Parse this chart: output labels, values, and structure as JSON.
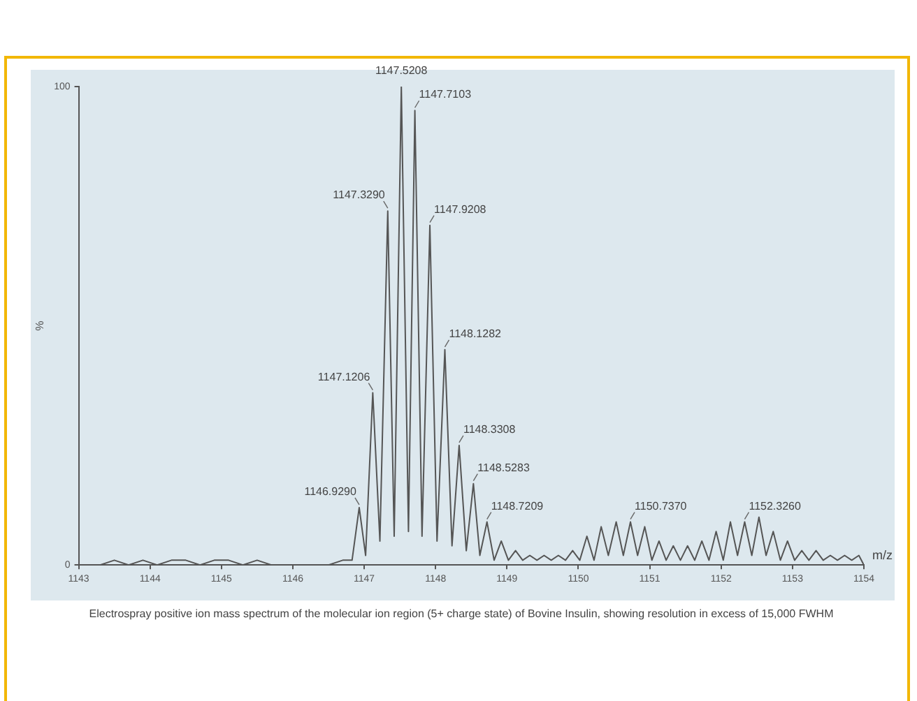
{
  "chart_data": {
    "type": "line",
    "xlabel": "m/z",
    "ylabel": "%",
    "marker": "none",
    "line_style": "solid",
    "grid": false,
    "legend": false,
    "xlim": [
      1143,
      1154
    ],
    "xticks": [
      1143,
      1144,
      1145,
      1146,
      1147,
      1148,
      1149,
      1150,
      1151,
      1152,
      1153,
      1154
    ],
    "ylim": [
      0,
      100
    ],
    "yticks": [
      0,
      100
    ],
    "series": [
      {
        "color": "#555555",
        "x": [
          1143.0,
          1143.3,
          1143.5,
          1143.7,
          1143.9,
          1144.1,
          1144.3,
          1144.5,
          1144.7,
          1144.9,
          1145.1,
          1145.3,
          1145.5,
          1145.7,
          1145.9,
          1146.1,
          1146.3,
          1146.5,
          1146.7,
          1146.83,
          1146.93,
          1147.02,
          1147.12,
          1147.22,
          1147.33,
          1147.42,
          1147.52,
          1147.62,
          1147.71,
          1147.81,
          1147.92,
          1148.02,
          1148.13,
          1148.23,
          1148.33,
          1148.43,
          1148.53,
          1148.62,
          1148.72,
          1148.82,
          1148.92,
          1149.02,
          1149.12,
          1149.22,
          1149.32,
          1149.42,
          1149.52,
          1149.62,
          1149.72,
          1149.82,
          1149.92,
          1150.02,
          1150.12,
          1150.22,
          1150.32,
          1150.42,
          1150.53,
          1150.63,
          1150.73,
          1150.83,
          1150.93,
          1151.03,
          1151.13,
          1151.23,
          1151.33,
          1151.43,
          1151.53,
          1151.63,
          1151.73,
          1151.83,
          1151.93,
          1152.03,
          1152.13,
          1152.23,
          1152.33,
          1152.43,
          1152.53,
          1152.63,
          1152.73,
          1152.83,
          1152.93,
          1153.03,
          1153.13,
          1153.23,
          1153.33,
          1153.43,
          1153.53,
          1153.63,
          1153.73,
          1153.83,
          1153.93,
          1154.0
        ],
        "values": [
          0,
          0,
          1,
          0,
          1,
          0,
          1,
          1,
          0,
          1,
          1,
          0,
          1,
          0,
          0,
          0,
          0,
          0,
          1,
          1,
          12,
          2,
          36,
          5,
          74,
          6,
          100,
          7,
          95,
          6,
          71,
          5,
          45,
          4,
          25,
          3,
          17,
          2,
          9,
          1,
          5,
          1,
          3,
          1,
          2,
          1,
          2,
          1,
          2,
          1,
          3,
          1,
          6,
          1,
          8,
          2,
          9,
          2,
          9,
          2,
          8,
          1,
          5,
          1,
          4,
          1,
          4,
          1,
          5,
          1,
          7,
          1,
          9,
          2,
          9,
          2,
          10,
          2,
          7,
          1,
          5,
          1,
          3,
          1,
          3,
          1,
          2,
          1,
          2,
          1,
          2,
          0
        ]
      }
    ],
    "annotations": [
      {
        "text": "1146.9290",
        "x": 1146.93,
        "y": 12
      },
      {
        "text": "1147.1206",
        "x": 1147.12,
        "y": 36
      },
      {
        "text": "1147.3290",
        "x": 1147.33,
        "y": 74
      },
      {
        "text": "1147.5208",
        "x": 1147.52,
        "y": 100
      },
      {
        "text": "1147.7103",
        "x": 1147.71,
        "y": 95
      },
      {
        "text": "1147.9208",
        "x": 1147.92,
        "y": 71
      },
      {
        "text": "1148.1282",
        "x": 1148.13,
        "y": 45
      },
      {
        "text": "1148.3308",
        "x": 1148.33,
        "y": 25
      },
      {
        "text": "1148.5283",
        "x": 1148.53,
        "y": 17
      },
      {
        "text": "1148.7209",
        "x": 1148.72,
        "y": 9
      },
      {
        "text": "1150.7370",
        "x": 1150.73,
        "y": 9
      },
      {
        "text": "1152.3260",
        "x": 1152.33,
        "y": 9
      },
      "Electrospray positive ion mass spectrum of the molecular ion region (5+ charge state) of Bovine Insulin, showing resolution in excess of 15,000 FWHM"
    ]
  }
}
